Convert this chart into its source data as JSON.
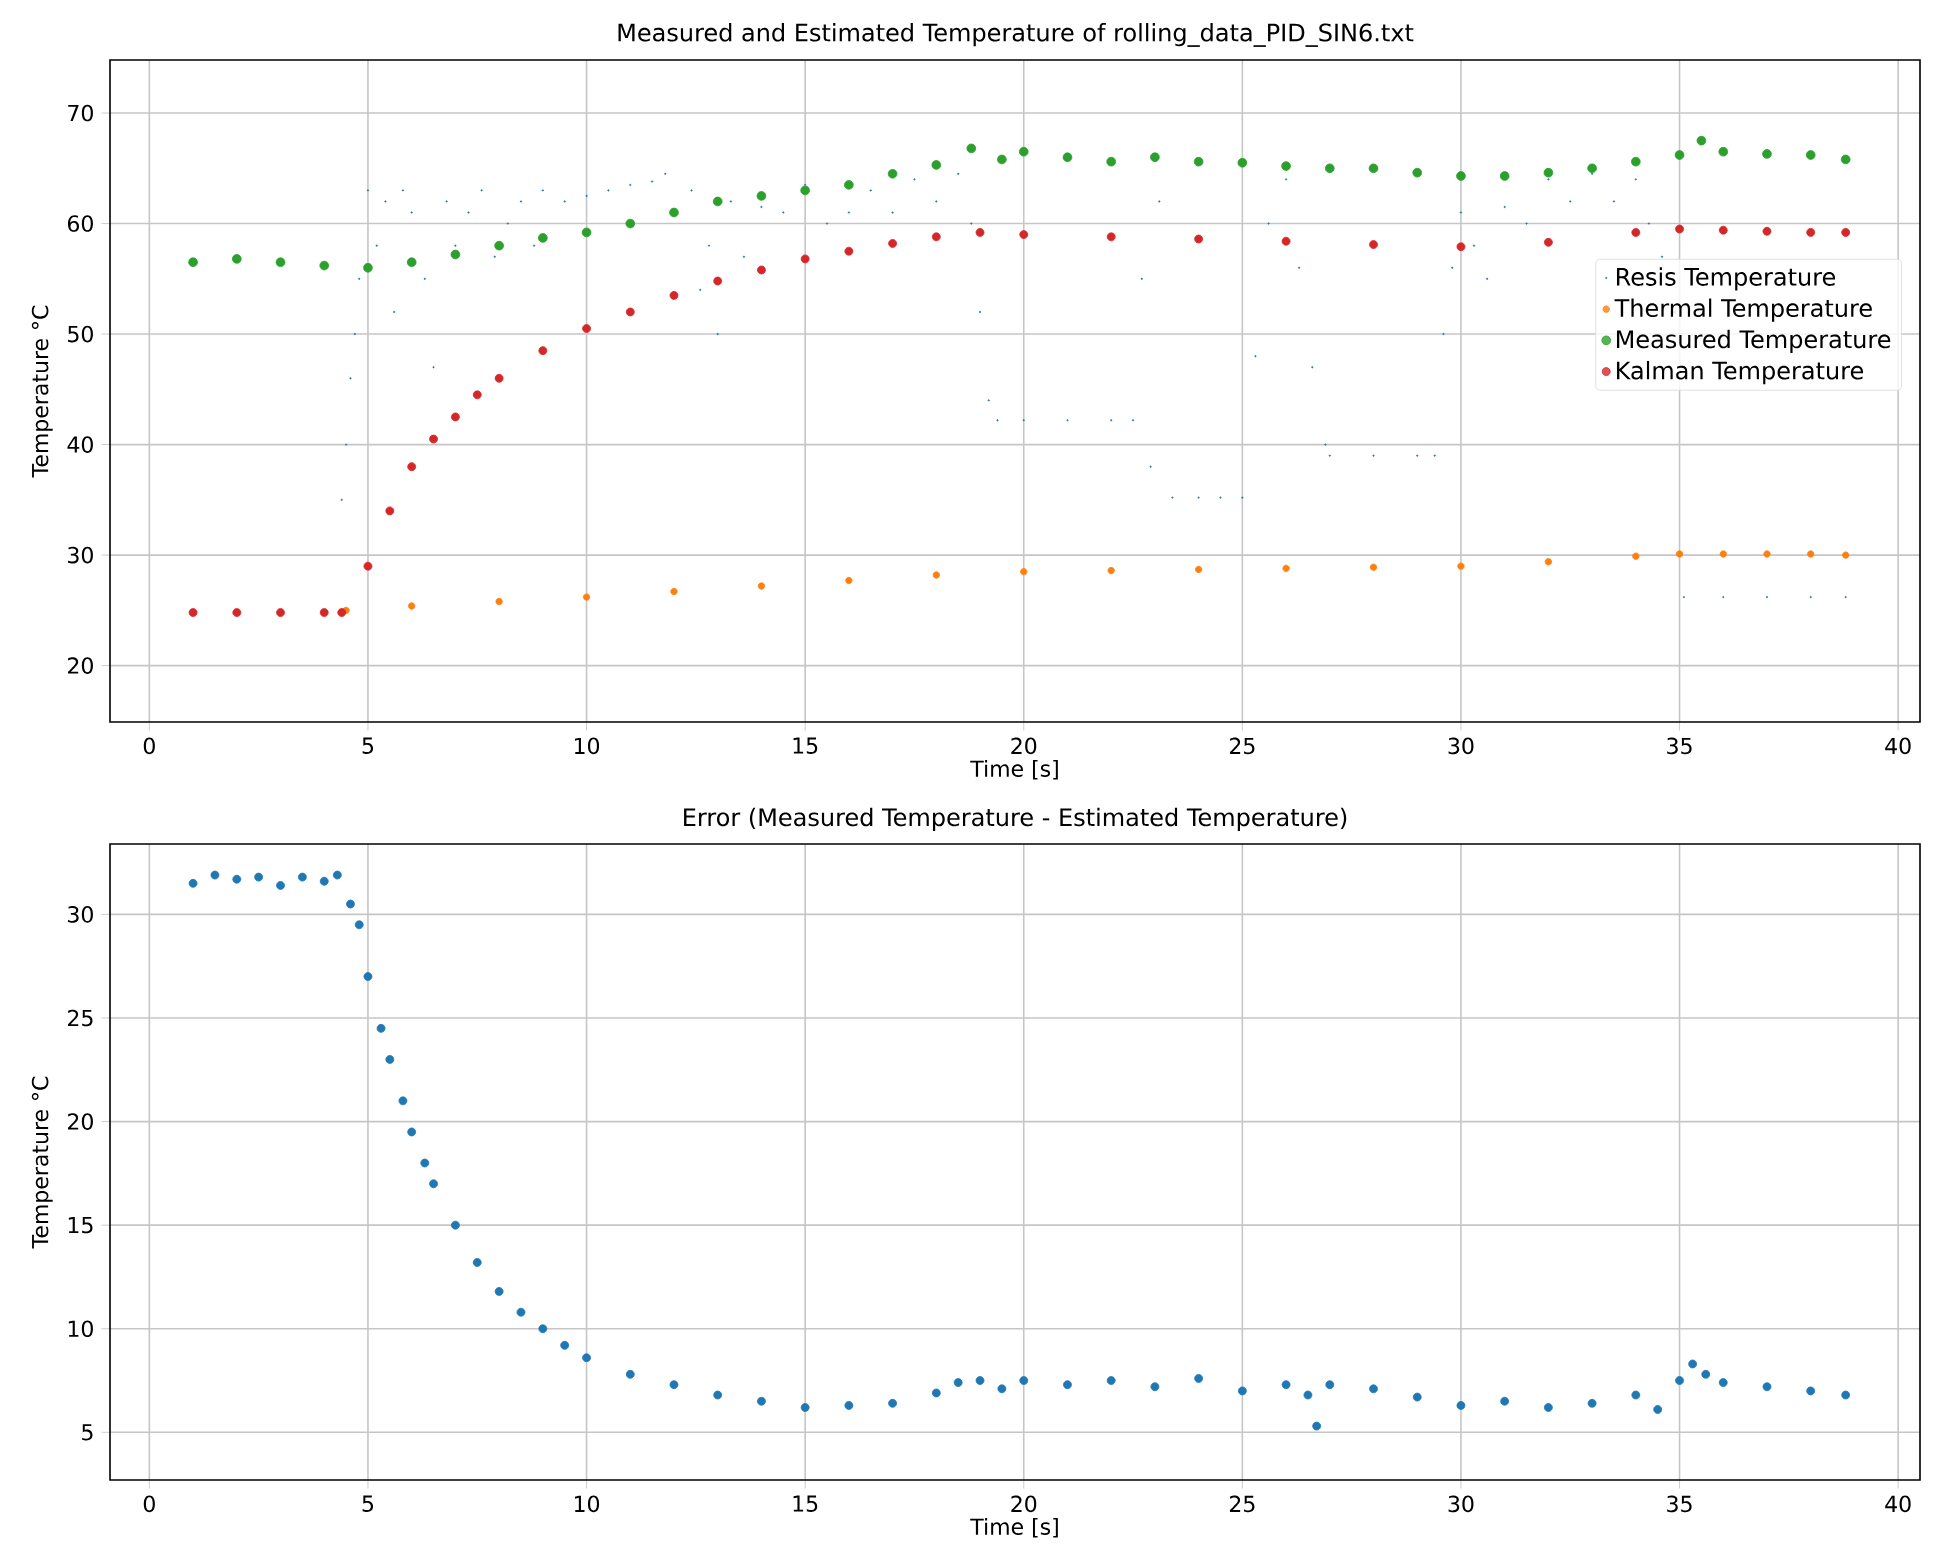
{
  "chart_data": [
    {
      "type": "scatter",
      "title": "Measured and Estimated Temperature of rolling_data_PID_SIN6.txt",
      "xlabel": "Time [s]",
      "ylabel": "Temperature °C",
      "xlim": [
        -0.9,
        40.5
      ],
      "ylim": [
        14.9,
        74.8
      ],
      "xticks": [
        0,
        5,
        10,
        15,
        20,
        25,
        30,
        35,
        40
      ],
      "yticks": [
        20,
        30,
        40,
        50,
        60,
        70
      ],
      "grid": true,
      "legend": "right",
      "series": [
        {
          "name": "Resis Temperature",
          "color": "#1f77b4",
          "x": [
            4.4,
            4.5,
            4.6,
            4.7,
            4.8,
            5.0,
            5.2,
            5.4,
            5.6,
            5.8,
            6.0,
            6.3,
            6.5,
            6.8,
            7.0,
            7.3,
            7.6,
            7.9,
            8.2,
            8.5,
            8.8,
            9.0,
            9.5,
            10.0,
            10.5,
            11.0,
            11.5,
            11.8,
            12.4,
            12.6,
            12.8,
            13.0,
            13.3,
            13.6,
            14.0,
            14.5,
            15.0,
            15.5,
            16.0,
            16.5,
            17.0,
            17.5,
            18.0,
            18.5,
            18.8,
            19.0,
            19.2,
            19.4,
            20.0,
            21.0,
            22.0,
            22.5,
            22.7,
            22.9,
            23.1,
            23.4,
            24.0,
            24.5,
            25.0,
            25.3,
            25.6,
            26.0,
            26.3,
            26.6,
            26.9,
            27.0,
            28.0,
            29.0,
            29.4,
            29.6,
            29.8,
            30.0,
            30.3,
            30.6,
            31.0,
            31.5,
            32.0,
            32.5,
            33.0,
            33.5,
            34.0,
            34.3,
            34.6,
            34.9,
            35.1,
            36.0,
            37.0,
            38.0,
            38.8
          ],
          "values": [
            35.0,
            40.0,
            46.0,
            50.0,
            55.0,
            63.0,
            58.0,
            62.0,
            52.0,
            63.0,
            61.0,
            55.0,
            47.0,
            62.0,
            58.0,
            61.0,
            63.0,
            57.0,
            60.0,
            62.0,
            58.0,
            63.0,
            62.0,
            62.5,
            63.0,
            63.5,
            63.8,
            64.5,
            63.0,
            54.0,
            58.0,
            50.0,
            62.0,
            57.0,
            61.5,
            61.0,
            63.5,
            60.0,
            61.0,
            63.0,
            61.0,
            64.0,
            62.0,
            64.5,
            60.0,
            52.0,
            44.0,
            42.2,
            42.2,
            42.2,
            42.2,
            42.2,
            55.0,
            38.0,
            62.0,
            35.2,
            35.2,
            35.2,
            35.2,
            48.0,
            60.0,
            64.0,
            56.0,
            47.0,
            40.0,
            39.0,
            39.0,
            39.0,
            39.0,
            50.0,
            56.0,
            61.0,
            58.0,
            55.0,
            61.5,
            60.0,
            64.0,
            62.0,
            64.5,
            62.0,
            64.0,
            60.0,
            57.0,
            52.0,
            26.2,
            26.2,
            26.2,
            26.2,
            26.2
          ]
        },
        {
          "name": "Thermal Temperature",
          "color": "#ff7f0e",
          "x": [
            4.5,
            6,
            8,
            10,
            12,
            14,
            16,
            18,
            20,
            22,
            24,
            26,
            28,
            30,
            32,
            34,
            35,
            36,
            37,
            38,
            38.8
          ],
          "values": [
            25.0,
            25.4,
            25.8,
            26.2,
            26.7,
            27.2,
            27.7,
            28.2,
            28.5,
            28.6,
            28.7,
            28.8,
            28.9,
            29.0,
            29.4,
            29.9,
            30.1,
            30.1,
            30.1,
            30.1,
            30.0
          ]
        },
        {
          "name": "Measured Temperature",
          "color": "#2ca02c",
          "x": [
            1,
            2,
            3,
            4,
            5,
            6,
            7,
            8,
            9,
            10,
            11,
            12,
            13,
            14,
            15,
            16,
            17,
            18,
            18.8,
            19.5,
            20,
            21,
            22,
            23,
            24,
            25,
            26,
            27,
            28,
            29,
            30,
            31,
            32,
            33,
            34,
            35,
            35.5,
            36,
            37,
            38,
            38.8
          ],
          "values": [
            56.5,
            56.8,
            56.5,
            56.2,
            56.0,
            56.5,
            57.2,
            58.0,
            58.7,
            59.2,
            60.0,
            61.0,
            62.0,
            62.5,
            63.0,
            63.5,
            64.5,
            65.3,
            66.8,
            65.8,
            66.5,
            66.0,
            65.6,
            66.0,
            65.6,
            65.5,
            65.2,
            65.0,
            65.0,
            64.6,
            64.3,
            64.3,
            64.6,
            65.0,
            65.6,
            66.2,
            67.5,
            66.5,
            66.3,
            66.2,
            65.8
          ]
        },
        {
          "name": "Kalman Temperature",
          "color": "#d62728",
          "x": [
            1,
            2,
            3,
            4,
            4.4,
            5,
            5.5,
            6,
            6.5,
            7,
            7.5,
            8,
            9,
            10,
            11,
            12,
            13,
            14,
            15,
            16,
            17,
            18,
            19,
            20,
            22,
            24,
            26,
            28,
            30,
            32,
            34,
            35,
            36,
            37,
            38,
            38.8
          ],
          "values": [
            24.8,
            24.8,
            24.8,
            24.8,
            24.8,
            29.0,
            34.0,
            38.0,
            40.5,
            42.5,
            44.5,
            46.0,
            48.5,
            50.5,
            52.0,
            53.5,
            54.8,
            55.8,
            56.8,
            57.5,
            58.2,
            58.8,
            59.2,
            59.0,
            58.8,
            58.6,
            58.4,
            58.1,
            57.9,
            58.3,
            59.2,
            59.5,
            59.4,
            59.3,
            59.2,
            59.2
          ]
        }
      ]
    },
    {
      "type": "scatter",
      "title": "Error (Measured Temperature - Estimated Temperature)",
      "xlabel": "Time [s]",
      "ylabel": "Temperature °C",
      "xlim": [
        -0.9,
        40.5
      ],
      "ylim": [
        2.7,
        33.4
      ],
      "xticks": [
        0,
        5,
        10,
        15,
        20,
        25,
        30,
        35,
        40
      ],
      "yticks": [
        5,
        10,
        15,
        20,
        25,
        30
      ],
      "grid": true,
      "series": [
        {
          "color": "#1f77b4",
          "x": [
            1,
            1.5,
            2,
            2.5,
            3,
            3.5,
            4,
            4.3,
            4.6,
            4.8,
            5,
            5.3,
            5.5,
            5.8,
            6,
            6.3,
            6.5,
            7,
            7.5,
            8,
            8.5,
            9,
            9.5,
            10,
            11,
            12,
            13,
            14,
            15,
            16,
            17,
            18,
            18.5,
            19,
            19.5,
            20,
            21,
            22,
            23,
            24,
            25,
            26,
            26.5,
            26.7,
            27,
            28,
            29,
            30,
            31,
            32,
            33,
            34,
            34.5,
            35,
            35.3,
            35.6,
            36,
            37,
            38,
            38.8
          ],
          "values": [
            31.5,
            31.9,
            31.7,
            31.8,
            31.4,
            31.8,
            31.6,
            31.9,
            30.5,
            29.5,
            27.0,
            24.5,
            23.0,
            21.0,
            19.5,
            18.0,
            17.0,
            15.0,
            13.2,
            11.8,
            10.8,
            10.0,
            9.2,
            8.6,
            7.8,
            7.3,
            6.8,
            6.5,
            6.2,
            6.3,
            6.4,
            6.9,
            7.4,
            7.5,
            7.1,
            7.5,
            7.3,
            7.5,
            7.2,
            7.6,
            7.0,
            7.3,
            6.8,
            5.3,
            7.3,
            7.1,
            6.7,
            6.3,
            6.5,
            6.2,
            6.4,
            6.8,
            6.1,
            7.5,
            8.3,
            7.8,
            7.4,
            7.2,
            7.0,
            6.8
          ]
        }
      ]
    }
  ]
}
